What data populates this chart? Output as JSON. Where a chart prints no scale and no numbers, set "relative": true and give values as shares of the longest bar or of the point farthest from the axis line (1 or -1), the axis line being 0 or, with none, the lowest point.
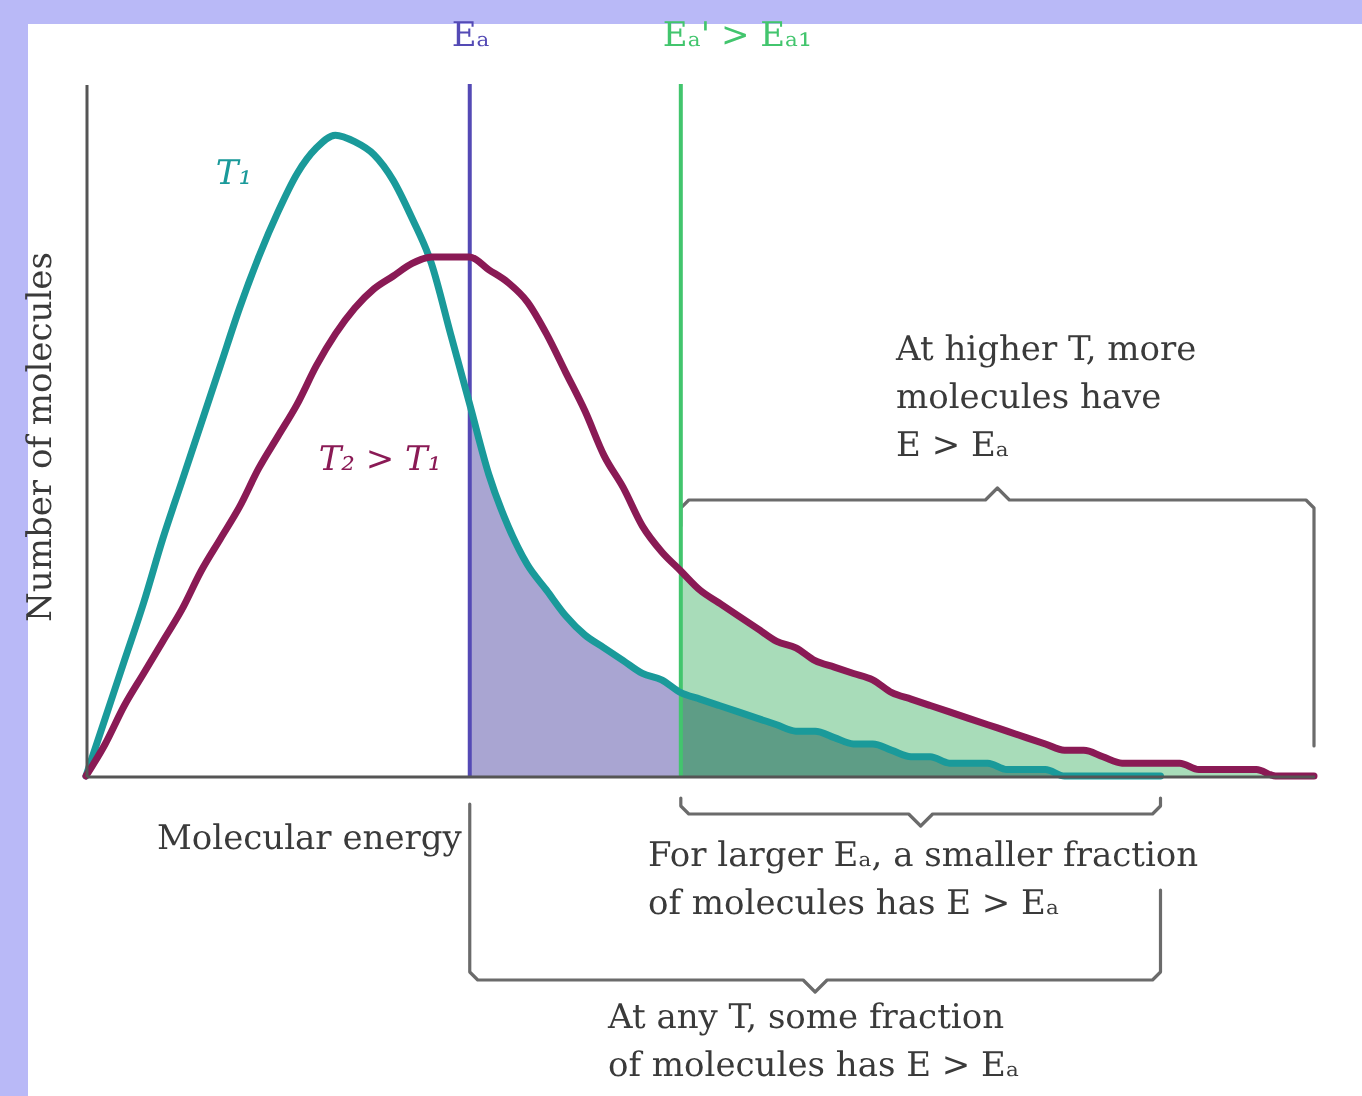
{
  "chart_data": {
    "type": "line",
    "relative": true,
    "xlabel": "Molecular energy",
    "ylabel": "Number of molecules",
    "categories": [
      null,
      null,
      null,
      null,
      null,
      null,
      null,
      null,
      null,
      null,
      null,
      null,
      null,
      null,
      null,
      null,
      null,
      null,
      null,
      null,
      null,
      null,
      null,
      null,
      null,
      null,
      null,
      null,
      null,
      null,
      null,
      null,
      null,
      null,
      null,
      null,
      null,
      null,
      null,
      null,
      null,
      null,
      null,
      null,
      null,
      null,
      null,
      null,
      null,
      null,
      null,
      null,
      null,
      null,
      null,
      null,
      null,
      null,
      null,
      null,
      null,
      null,
      null,
      null,
      null
    ],
    "series": [
      {
        "type": "area",
        "color": "#a9a5d2",
        "values": [
          null,
          null,
          null,
          null,
          null,
          null,
          null,
          null,
          null,
          null,
          null,
          null,
          null,
          null,
          null,
          null,
          null,
          null,
          null,
          null,
          0.58,
          0.47,
          0.39,
          0.33,
          0.29,
          0.25,
          0.22,
          0.2,
          0.18,
          0.16,
          0.15,
          0.13,
          null,
          null,
          null,
          null,
          null,
          null,
          null,
          null,
          null,
          null,
          null,
          null,
          null,
          null,
          null,
          null,
          null,
          null,
          null,
          null,
          null,
          null,
          null,
          null,
          null,
          null,
          null,
          null,
          null,
          null,
          null,
          null,
          null
        ]
      },
      {
        "type": "area",
        "color": "#a8dcb9",
        "values": [
          null,
          null,
          null,
          null,
          null,
          null,
          null,
          null,
          null,
          null,
          null,
          null,
          null,
          null,
          null,
          null,
          null,
          null,
          null,
          null,
          null,
          null,
          null,
          null,
          null,
          null,
          null,
          null,
          null,
          null,
          null,
          0.32,
          0.29,
          0.27,
          0.25,
          0.23,
          0.21,
          0.2,
          0.18,
          0.17,
          0.16,
          0.15,
          0.13,
          0.12,
          0.11,
          0.1,
          0.09,
          0.08,
          0.07,
          0.06,
          0.05,
          0.04,
          0.04,
          0.03,
          0.02,
          0.02,
          0.02,
          0.02,
          0.01,
          0.01,
          0.01,
          0.01,
          0,
          0,
          0
        ]
      },
      {
        "type": "area",
        "color": "#5e9d86",
        "values": [
          null,
          null,
          null,
          null,
          null,
          null,
          null,
          null,
          null,
          null,
          null,
          null,
          null,
          null,
          null,
          null,
          null,
          null,
          null,
          null,
          null,
          null,
          null,
          null,
          null,
          null,
          null,
          null,
          null,
          null,
          null,
          0.13,
          0.12,
          0.11,
          0.1,
          0.09,
          0.08,
          0.07,
          0.07,
          0.06,
          0.05,
          0.05,
          0.04,
          0.03,
          0.03,
          0.02,
          0.02,
          0.02,
          0.01,
          0.01,
          0.01,
          0,
          0,
          0,
          0,
          0,
          0,
          null,
          null,
          null,
          null,
          null,
          null,
          null,
          null
        ]
      },
      {
        "name": "T₁",
        "color": "#1a9a9a",
        "values": [
          0,
          0.09,
          0.18,
          0.27,
          0.37,
          0.46,
          0.55,
          0.64,
          0.73,
          0.81,
          0.88,
          0.94,
          0.98,
          1,
          0.99,
          0.97,
          0.93,
          0.87,
          0.8,
          0.69,
          0.58,
          0.47,
          0.39,
          0.33,
          0.29,
          0.25,
          0.22,
          0.2,
          0.18,
          0.16,
          0.15,
          0.13,
          0.12,
          0.11,
          0.1,
          0.09,
          0.08,
          0.07,
          0.07,
          0.06,
          0.05,
          0.05,
          0.04,
          0.03,
          0.03,
          0.02,
          0.02,
          0.02,
          0.01,
          0.01,
          0.01,
          0,
          0,
          0,
          0,
          0,
          0,
          null,
          null,
          null,
          null,
          null,
          null,
          null,
          null
        ]
      },
      {
        "name": "T₂ > T₁",
        "color": "#8a1a55",
        "values": [
          0,
          0.05,
          0.11,
          0.16,
          0.21,
          0.26,
          0.32,
          0.37,
          0.42,
          0.48,
          0.53,
          0.58,
          0.64,
          0.69,
          0.73,
          0.76,
          0.78,
          0.8,
          0.81,
          0.81,
          0.81,
          0.79,
          0.77,
          0.74,
          0.69,
          0.63,
          0.57,
          0.5,
          0.45,
          0.39,
          0.35,
          0.32,
          0.29,
          0.27,
          0.25,
          0.23,
          0.21,
          0.2,
          0.18,
          0.17,
          0.16,
          0.15,
          0.13,
          0.12,
          0.11,
          0.1,
          0.09,
          0.08,
          0.07,
          0.06,
          0.05,
          0.04,
          0.04,
          0.03,
          0.02,
          0.02,
          0.02,
          0.02,
          0.01,
          0.01,
          0.01,
          0.01,
          0,
          0,
          0
        ]
      }
    ],
    "annotations": [
      "Eₐ",
      "Eₐ' > Eₐ₁",
      "At higher T, more molecules have E > Eₐ",
      "For larger Eₐ, a smaller fraction of molecules has E > Eₐ",
      "At any T, some fraction of molecules has E > Eₐ"
    ]
  }
}
